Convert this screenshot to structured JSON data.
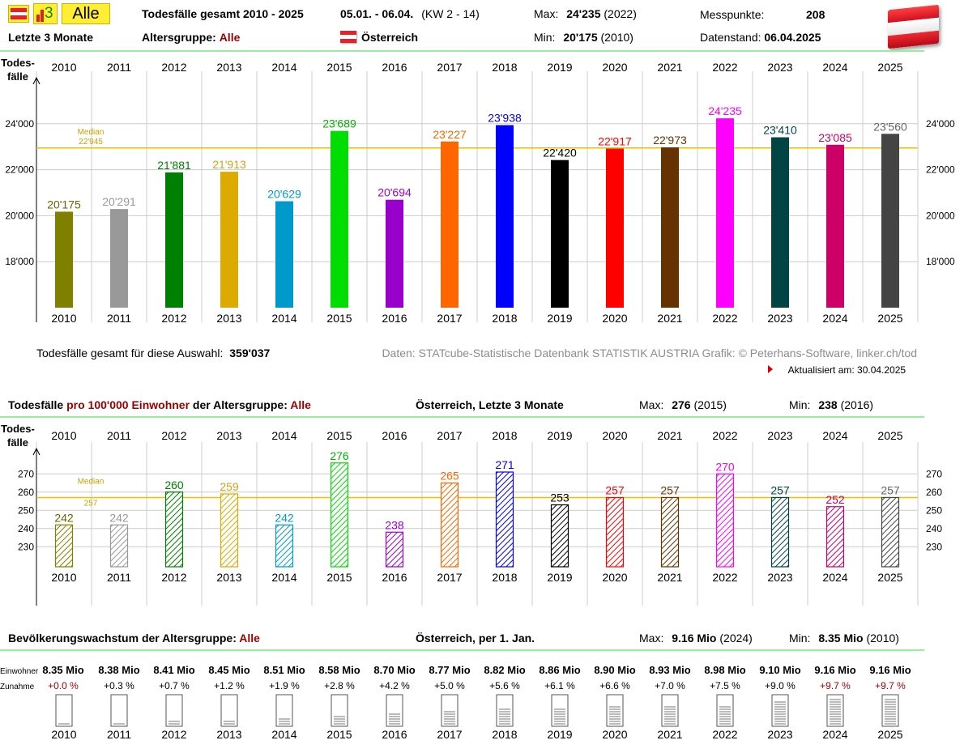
{
  "toolbar": {
    "alle_label": "Alle",
    "months_label": "Letzte 3 Monate",
    "three_icon_text": "3"
  },
  "header": {
    "title": "Todesfälle gesamt 2010 - 2025",
    "period": "05.01. - 06.04.",
    "kw": "(KW 2 - 14)",
    "max_label": "Max:",
    "max_value": "24'235",
    "max_year": "(2022)",
    "min_label": "Min:",
    "min_value": "20'175",
    "min_year": "(2010)",
    "messpunkte_label": "Messpunkte:",
    "messpunkte_value": "208",
    "datenstand_label": "Datenstand:",
    "datenstand_value": "06.04.2025",
    "altersgruppe_label": "Altersgruppe:",
    "altersgruppe_value": "Alle",
    "country": "Österreich"
  },
  "colors": {
    "years": [
      "#808000",
      "#999999",
      "#008000",
      "#dcaa00",
      "#0099cc",
      "#00dd00",
      "#9900cc",
      "#ff6600",
      "#0000ff",
      "#000000",
      "#ff0000",
      "#663300",
      "#ff00ff",
      "#004444",
      "#cc0066",
      "#444444"
    ],
    "labels": [
      "#666600",
      "#999999",
      "#008000",
      "#d4a017",
      "#0099cc",
      "#00b000",
      "#9900cc",
      "#ff6600",
      "#0000ff",
      "#000000",
      "#ff0000",
      "#663300",
      "#ff00ff",
      "#004444",
      "#cc0066",
      "#666666"
    ],
    "median": "#e6c200",
    "grid": "#cccccc",
    "rule": "#99ee99"
  },
  "chart_data": [
    {
      "type": "bar",
      "ylabel": "Todes-\nfälle",
      "categories": [
        "2010",
        "2011",
        "2012",
        "2013",
        "2014",
        "2015",
        "2016",
        "2017",
        "2018",
        "2019",
        "2020",
        "2021",
        "2022",
        "2023",
        "2024",
        "2025"
      ],
      "values": [
        20175,
        20291,
        21881,
        21913,
        20629,
        23689,
        20694,
        23227,
        23938,
        22420,
        22917,
        22973,
        24235,
        23410,
        23085,
        23560
      ],
      "value_labels": [
        "20'175",
        "20'291",
        "21'881",
        "21'913",
        "20'629",
        "23'689",
        "20'694",
        "23'227",
        "23'938",
        "22'420",
        "22'917",
        "22'973",
        "24'235",
        "23'410",
        "23'085",
        "23'560"
      ],
      "yticks": [
        18000,
        20000,
        22000,
        24000
      ],
      "ytick_labels": [
        "18'000",
        "20'000",
        "22'000",
        "24'000"
      ],
      "ylim": [
        16000,
        26000
      ],
      "median_label": "Median",
      "median_value_label": "22'945",
      "median": 22945
    },
    {
      "type": "bar",
      "ylabel": "Todes-\nfälle",
      "categories": [
        "2010",
        "2011",
        "2012",
        "2013",
        "2014",
        "2015",
        "2016",
        "2017",
        "2018",
        "2019",
        "2020",
        "2021",
        "2022",
        "2023",
        "2024",
        "2025"
      ],
      "values": [
        242,
        242,
        260,
        259,
        242,
        276,
        238,
        265,
        271,
        253,
        257,
        257,
        270,
        257,
        252,
        257
      ],
      "value_labels": [
        "242",
        "242",
        "260",
        "259",
        "242",
        "276",
        "238",
        "265",
        "271",
        "253",
        "257",
        "257",
        "270",
        "257",
        "252",
        "257"
      ],
      "yticks": [
        230,
        240,
        250,
        260,
        270
      ],
      "ytick_labels": [
        "230",
        "240",
        "250",
        "260",
        "270"
      ],
      "ylim": [
        219,
        283
      ],
      "median_label": "Median",
      "median_value_label": "257",
      "median": 257
    },
    {
      "type": "bar",
      "categories": [
        "2010",
        "2011",
        "2012",
        "2013",
        "2014",
        "2015",
        "2016",
        "2017",
        "2018",
        "2019",
        "2020",
        "2021",
        "2022",
        "2023",
        "2024",
        "2025"
      ],
      "values_mio": [
        8.35,
        8.38,
        8.41,
        8.45,
        8.51,
        8.58,
        8.7,
        8.77,
        8.82,
        8.86,
        8.9,
        8.93,
        8.98,
        9.1,
        9.16,
        9.16
      ],
      "pop_labels": [
        "8.35 Mio",
        "8.38 Mio",
        "8.41 Mio",
        "8.45 Mio",
        "8.51 Mio",
        "8.58 Mio",
        "8.70 Mio",
        "8.77 Mio",
        "8.82 Mio",
        "8.86 Mio",
        "8.90 Mio",
        "8.93 Mio",
        "8.98 Mio",
        "9.10 Mio",
        "9.16 Mio",
        "9.16 Mio"
      ],
      "growth_labels": [
        "+0.0 %",
        "+0.3 %",
        "+0.7 %",
        "+1.2 %",
        "+1.9 %",
        "+2.8 %",
        "+4.2 %",
        "+5.0 %",
        "+5.6 %",
        "+6.1 %",
        "+6.6 %",
        "+7.0 %",
        "+7.5 %",
        "+9.0 %",
        "+9.7 %",
        "+9.7 %"
      ],
      "growth_pct": [
        0.0,
        0.3,
        0.7,
        1.2,
        1.9,
        2.8,
        4.2,
        5.0,
        5.6,
        6.1,
        6.6,
        7.0,
        7.5,
        9.0,
        9.7,
        9.7
      ],
      "growth_red": [
        true,
        false,
        false,
        false,
        false,
        false,
        false,
        false,
        false,
        false,
        false,
        false,
        false,
        false,
        true,
        true
      ],
      "row_label_pop": "Einwohner",
      "row_label_growth": "Zunahme"
    }
  ],
  "section1_footer": {
    "total_label": "Todesfälle gesamt für diese Auswahl:",
    "total_value": "359'037",
    "source": "Daten: STATcube-Statistische Datenbank STATISTIK AUSTRIA  Grafik: © Peterhans-Software, linker.ch/tod",
    "updated": "Aktualisiert am: 30.04.2025"
  },
  "section2": {
    "title_a": "Todesfälle ",
    "title_b": "pro 100'000 Einwohner",
    "title_c": " der Altersgruppe: ",
    "title_d": "Alle",
    "subtitle": "Österreich, Letzte 3 Monate",
    "max_label": "Max:",
    "max_value": "276",
    "max_year": "(2015)",
    "min_label": "Min:",
    "min_value": "238",
    "min_year": "(2016)"
  },
  "section3": {
    "title_a": "Bevölkerungswachstum der Altersgruppe: ",
    "title_b": "Alle",
    "subtitle": "Österreich, per 1. Jan.",
    "max_label": "Max:",
    "max_value": "9.16 Mio",
    "max_year": "(2024)",
    "min_label": "Min:",
    "min_value": "8.35 Mio",
    "min_year": "(2010)"
  }
}
